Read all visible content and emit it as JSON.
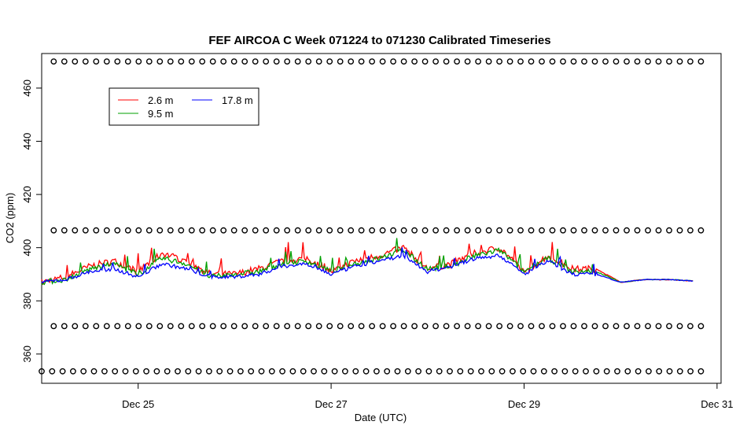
{
  "chart_data": {
    "type": "line",
    "title": "FEF AIRCOA C  Week 071224 to 071230  Calibrated Timeseries",
    "xlabel": "Date (UTC)",
    "ylabel": "CO2 (ppm)",
    "x_ticks": [
      "Dec 25",
      "Dec 27",
      "Dec 29",
      "Dec 31"
    ],
    "y_ticks": [
      360,
      380,
      400,
      420,
      440,
      460
    ],
    "xlim": [
      "2007-12-24T00:00",
      "2007-12-31T01:00"
    ],
    "ylim": [
      349,
      473
    ],
    "legend": {
      "placement": "top-left",
      "columns": 2
    },
    "series": [
      {
        "name": "2.6 m",
        "color": "#ff0000",
        "x": [
          "2007-12-24T00:00",
          "2007-12-24T06:00",
          "2007-12-24T12:00",
          "2007-12-24T18:00",
          "2007-12-25T00:00",
          "2007-12-25T06:00",
          "2007-12-25T12:00",
          "2007-12-25T18:00",
          "2007-12-26T00:00",
          "2007-12-26T06:00",
          "2007-12-26T12:00",
          "2007-12-26T18:00",
          "2007-12-27T00:00",
          "2007-12-27T06:00",
          "2007-12-27T12:00",
          "2007-12-27T18:00",
          "2007-12-28T00:00",
          "2007-12-28T06:00",
          "2007-12-28T12:00",
          "2007-12-28T18:00",
          "2007-12-29T00:00",
          "2007-12-29T06:00",
          "2007-12-29T12:00",
          "2007-12-29T18:00",
          "2007-12-30T00:00",
          "2007-12-30T06:00",
          "2007-12-30T12:00",
          "2007-12-30T18:00"
        ],
        "y": [
          387,
          389,
          393,
          395,
          391,
          398,
          395,
          390,
          390,
          392,
          395,
          396,
          391,
          395,
          397,
          400,
          392,
          394,
          398,
          400,
          391,
          397,
          392,
          392,
          387,
          388,
          388,
          387.5
        ]
      },
      {
        "name": "9.5 m",
        "color": "#00a000",
        "x": [
          "2007-12-24T00:00",
          "2007-12-24T06:00",
          "2007-12-24T12:00",
          "2007-12-24T18:00",
          "2007-12-25T00:00",
          "2007-12-25T06:00",
          "2007-12-25T12:00",
          "2007-12-25T18:00",
          "2007-12-26T00:00",
          "2007-12-26T06:00",
          "2007-12-26T12:00",
          "2007-12-26T18:00",
          "2007-12-27T00:00",
          "2007-12-27T06:00",
          "2007-12-27T12:00",
          "2007-12-27T18:00",
          "2007-12-28T00:00",
          "2007-12-28T06:00",
          "2007-12-28T12:00",
          "2007-12-28T18:00",
          "2007-12-29T00:00",
          "2007-12-29T06:00",
          "2007-12-29T12:00",
          "2007-12-29T18:00",
          "2007-12-30T00:00",
          "2007-12-30T06:00",
          "2007-12-30T12:00",
          "2007-12-30T18:00"
        ],
        "y": [
          387,
          388,
          392,
          394,
          390,
          396,
          394,
          389,
          390,
          391,
          394,
          395,
          391,
          394,
          396,
          399,
          392,
          393,
          397,
          399,
          391,
          396,
          391,
          391,
          387,
          388,
          388,
          387.5
        ]
      },
      {
        "name": "17.8 m",
        "color": "#0000ff",
        "x": [
          "2007-12-24T00:00",
          "2007-12-24T06:00",
          "2007-12-24T12:00",
          "2007-12-24T18:00",
          "2007-12-25T00:00",
          "2007-12-25T06:00",
          "2007-12-25T12:00",
          "2007-12-25T18:00",
          "2007-12-26T00:00",
          "2007-12-26T06:00",
          "2007-12-26T12:00",
          "2007-12-26T18:00",
          "2007-12-27T00:00",
          "2007-12-27T06:00",
          "2007-12-27T12:00",
          "2007-12-27T18:00",
          "2007-12-28T00:00",
          "2007-12-28T06:00",
          "2007-12-28T12:00",
          "2007-12-28T18:00",
          "2007-12-29T00:00",
          "2007-12-29T06:00",
          "2007-12-29T12:00",
          "2007-12-29T18:00",
          "2007-12-30T00:00",
          "2007-12-30T06:00",
          "2007-12-30T12:00",
          "2007-12-30T18:00"
        ],
        "y": [
          387,
          388,
          391,
          392,
          389,
          394,
          392,
          389,
          389,
          390,
          393,
          394,
          390,
          393,
          395,
          397,
          391,
          393,
          396,
          397,
          390,
          395,
          390,
          390,
          387,
          388,
          388,
          387.5
        ]
      }
    ],
    "reference_points": [
      {
        "y": 470,
        "x_start": "2007-12-24T03:00",
        "x_end": "2007-12-30T20:00",
        "count": 62
      },
      {
        "y": 406.5,
        "x_start": "2007-12-24T03:00",
        "x_end": "2007-12-30T20:00",
        "count": 62
      },
      {
        "y": 370.5,
        "x_start": "2007-12-24T03:00",
        "x_end": "2007-12-30T20:00",
        "count": 62
      },
      {
        "y": 353.5,
        "x_start": "2007-12-24T00:00",
        "x_end": "2007-12-30T20:00",
        "count": 64
      }
    ]
  }
}
